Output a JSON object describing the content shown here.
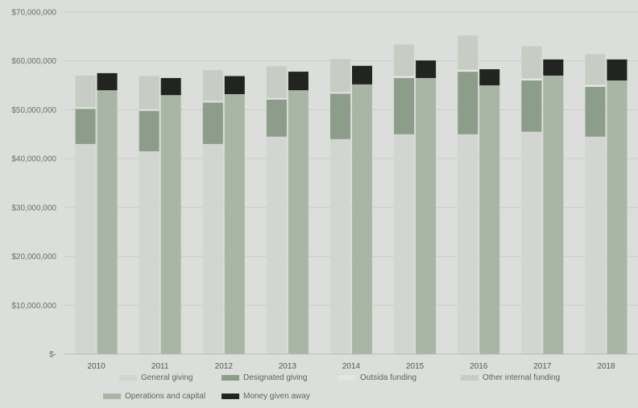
{
  "chart_data": {
    "type": "bar",
    "stacked": true,
    "title": "",
    "xlabel": "",
    "ylabel": "",
    "categories": [
      "2010",
      "2011",
      "2012",
      "2013",
      "2014",
      "2015",
      "2016",
      "2017",
      "2018"
    ],
    "ylim": [
      0,
      70000000
    ],
    "y_ticks": [
      {
        "value": 0,
        "label": "$-"
      },
      {
        "value": 10000000,
        "label": "$10,000,000"
      },
      {
        "value": 20000000,
        "label": "$20,000,000"
      },
      {
        "value": 30000000,
        "label": "$30,000,000"
      },
      {
        "value": 40000000,
        "label": "$40,000,000"
      },
      {
        "value": 50000000,
        "label": "$50,000,000"
      },
      {
        "value": 60000000,
        "label": "$60,000,000"
      },
      {
        "value": 70000000,
        "label": "$70,000,000"
      }
    ],
    "grid": true,
    "legend_position": "bottom",
    "stacks": [
      {
        "name": "income",
        "series": [
          {
            "name": "General giving",
            "color": "#d3d5d2",
            "values": [
              43000000,
              41500000,
              43000000,
              44500000,
              44000000,
              45000000,
              45000000,
              45500000,
              44500000
            ]
          },
          {
            "name": "Designated giving",
            "color": "#8c9e89",
            "values": [
              7200000,
              8300000,
              8500000,
              7600000,
              9300000,
              11500000,
              12800000,
              10500000,
              10200000
            ]
          },
          {
            "name": "Outside funding",
            "color": "#e3e5e1",
            "values": [
              300000,
              300000,
              300000,
              300000,
              300000,
              400000,
              400000,
              400000,
              400000
            ]
          },
          {
            "name": "Other internal funding",
            "color": "#c7cdc5",
            "values": [
              6500000,
              6800000,
              6300000,
              6500000,
              6800000,
              6500000,
              7000000,
              6600000,
              6300000
            ]
          }
        ]
      },
      {
        "name": "expenses",
        "series": [
          {
            "name": "Operations and capital",
            "color": "#a9b6a6",
            "values": [
              54000000,
              53000000,
              53200000,
              54000000,
              55200000,
              56500000,
              55000000,
              57000000,
              56000000
            ]
          },
          {
            "name": "Money given away",
            "color": "#222422",
            "values": [
              3500000,
              3500000,
              3700000,
              3800000,
              3800000,
              3600000,
              3300000,
              3300000,
              4300000
            ]
          }
        ]
      }
    ],
    "legend": [
      {
        "label": "General giving",
        "color": "#d3d5d2"
      },
      {
        "label": "Designated giving",
        "color": "#8c9e89"
      },
      {
        "label": "Outsida funding",
        "color": "#e3e5e1"
      },
      {
        "label": "Other internal funding",
        "color": "#c7cdc5"
      },
      {
        "label": "Operations and capital",
        "color": "#a9b6a6"
      },
      {
        "label": "Money given away",
        "color": "#222422"
      }
    ]
  }
}
